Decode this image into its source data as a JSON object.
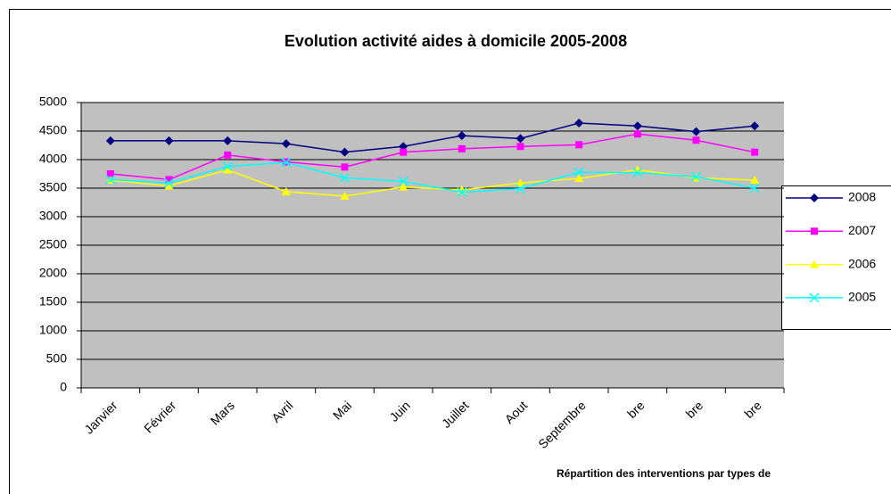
{
  "chart_data": {
    "type": "line",
    "title": "Evolution activité aides à domicile 2005-2008",
    "footer": "Répartition des interventions par types de",
    "categories": [
      "Janvier",
      "Février",
      "Mars",
      "Avril",
      "Mai",
      "Juin",
      "Juillet",
      "Aout",
      "Septembre",
      "bre",
      "bre",
      "bre"
    ],
    "series": [
      {
        "name": "2008",
        "color": "#000080",
        "marker": "diamond",
        "values": [
          4330,
          4330,
          4330,
          4280,
          4130,
          4230,
          4420,
          4370,
          4640,
          4590,
          4490,
          4590
        ]
      },
      {
        "name": "2007",
        "color": "#ff00ff",
        "marker": "square",
        "values": [
          3750,
          3650,
          4080,
          3960,
          3870,
          4130,
          4190,
          4230,
          4260,
          4450,
          4340,
          4130
        ]
      },
      {
        "name": "2006",
        "color": "#ffff00",
        "marker": "triangle",
        "values": [
          3640,
          3540,
          3820,
          3440,
          3360,
          3520,
          3470,
          3590,
          3670,
          3820,
          3680,
          3640
        ]
      },
      {
        "name": "2005",
        "color": "#00ffff",
        "marker": "x",
        "values": [
          3650,
          3590,
          3880,
          3950,
          3680,
          3620,
          3430,
          3490,
          3780,
          3770,
          3700,
          3500
        ]
      }
    ],
    "ylim": [
      0,
      5000
    ],
    "yticks": [
      0,
      500,
      1000,
      1500,
      2000,
      2500,
      3000,
      3500,
      4000,
      4500,
      5000
    ],
    "grid": true,
    "legend": "right"
  }
}
